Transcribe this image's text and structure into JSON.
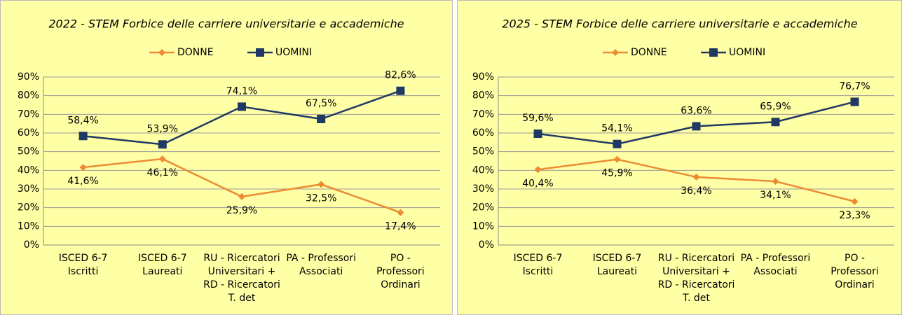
{
  "chart_data": [
    {
      "type": "line",
      "title": "2022 -  STEM Forbice delle carriere universitarie e accademiche",
      "categories": [
        "ISCED 6-7\nIscritti",
        "ISCED 6-7\nLaureati",
        "RU - Ricercatori\nUniversitari +\nRD - Ricercatori\nT. det",
        "PA - Professori\nAssociati",
        "PO -\nProfessori\nOrdinari"
      ],
      "series": [
        {
          "name": "DONNE",
          "color": "#ed8b32",
          "marker": "diamond",
          "values": [
            41.6,
            46.1,
            25.9,
            32.5,
            17.4
          ],
          "value_labels": [
            "41,6%",
            "46,1%",
            "25,9%",
            "32,5%",
            "17,4%"
          ]
        },
        {
          "name": "UOMINI",
          "color": "#1f3864",
          "marker": "square",
          "values": [
            58.4,
            53.9,
            74.1,
            67.5,
            82.6
          ],
          "value_labels": [
            "58,4%",
            "53,9%",
            "74,1%",
            "67,5%",
            "82,6%"
          ]
        }
      ],
      "ylim": [
        0,
        90
      ],
      "yticks": [
        {
          "value": 0,
          "label": "0%"
        },
        {
          "value": 10,
          "label": "10%"
        },
        {
          "value": 20,
          "label": "20%"
        },
        {
          "value": 30,
          "label": "30%"
        },
        {
          "value": 40,
          "label": "40%"
        },
        {
          "value": 50,
          "label": "50%"
        },
        {
          "value": 60,
          "label": "60%"
        },
        {
          "value": 70,
          "label": "70%"
        },
        {
          "value": 80,
          "label": "80%"
        },
        {
          "value": 90,
          "label": "90%"
        }
      ],
      "grid": true,
      "legend": "top"
    },
    {
      "type": "line",
      "title": "2025 -  STEM Forbice delle carriere universitarie e accademiche",
      "categories": [
        "ISCED 6-7\nIscritti",
        "ISCED 6-7\nLaureati",
        "RU - Ricercatori\nUniversitari +\nRD - Ricercatori\nT. det",
        "PA - Professori\nAssociati",
        "PO -\nProfessori\nOrdinari"
      ],
      "series": [
        {
          "name": "DONNE",
          "color": "#ed8b32",
          "marker": "diamond",
          "values": [
            40.4,
            45.9,
            36.4,
            34.1,
            23.3
          ],
          "value_labels": [
            "40,4%",
            "45,9%",
            "36,4%",
            "34,1%",
            "23,3%"
          ]
        },
        {
          "name": "UOMINI",
          "color": "#1f3864",
          "marker": "square",
          "values": [
            59.6,
            54.1,
            63.6,
            65.9,
            76.7
          ],
          "value_labels": [
            "59,6%",
            "54,1%",
            "63,6%",
            "65,9%",
            "76,7%"
          ]
        }
      ],
      "ylim": [
        0,
        90
      ],
      "yticks": [
        {
          "value": 0,
          "label": "0%"
        },
        {
          "value": 10,
          "label": "10%"
        },
        {
          "value": 20,
          "label": "20%"
        },
        {
          "value": 30,
          "label": "30%"
        },
        {
          "value": 40,
          "label": "40%"
        },
        {
          "value": 50,
          "label": "50%"
        },
        {
          "value": 60,
          "label": "60%"
        },
        {
          "value": 70,
          "label": "70%"
        },
        {
          "value": 80,
          "label": "80%"
        },
        {
          "value": 90,
          "label": "90%"
        }
      ],
      "grid": true,
      "legend": "top"
    }
  ]
}
